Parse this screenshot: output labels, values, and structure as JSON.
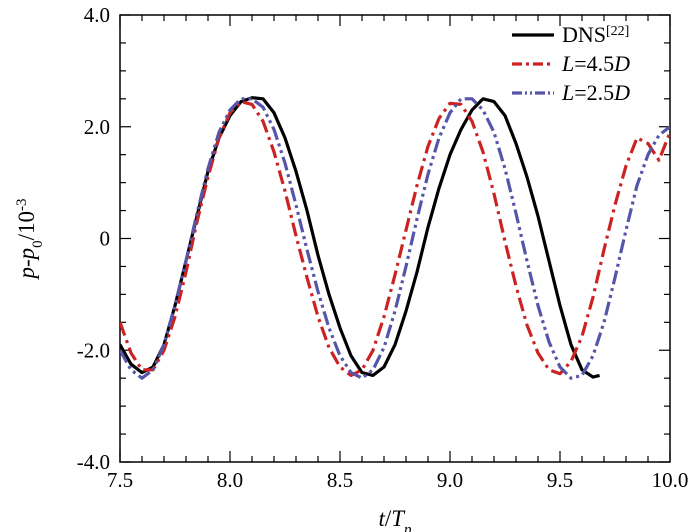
{
  "chart_data": {
    "type": "line",
    "xlabel": {
      "main": "t",
      "sep": "/",
      "sym": "T",
      "sub": "p"
    },
    "ylabel": {
      "a": "p",
      "dash": "-",
      "b": "p",
      "sub": "0",
      "sep": "/10",
      "sup": "-3"
    },
    "xlim": [
      7.5,
      10.0
    ],
    "ylim": [
      -4.0,
      4.0
    ],
    "xticks": [
      7.5,
      8.0,
      8.5,
      9.0,
      9.5,
      10.0
    ],
    "xtick_labels": [
      "7.5",
      "8.0",
      "8.5",
      "9.0",
      "9.5",
      "10.0"
    ],
    "yticks": [
      -4.0,
      -2.0,
      0,
      2.0,
      4.0
    ],
    "ytick_labels": [
      "-4.0",
      "-2.0",
      "0",
      "2.0",
      "4.0"
    ],
    "grid": false,
    "legend_position": "top-right",
    "series": [
      {
        "name": "DNS",
        "name_sup": "[22]",
        "name_suffix": "",
        "color": "#000000",
        "style": "solid",
        "x": [
          7.5,
          7.55,
          7.6,
          7.65,
          7.7,
          7.75,
          7.8,
          7.85,
          7.9,
          7.95,
          8.0,
          8.05,
          8.1,
          8.15,
          8.2,
          8.25,
          8.3,
          8.35,
          8.4,
          8.45,
          8.5,
          8.55,
          8.6,
          8.65,
          8.7,
          8.75,
          8.8,
          8.85,
          8.9,
          8.95,
          9.0,
          9.05,
          9.1,
          9.15,
          9.2,
          9.25,
          9.3,
          9.35,
          9.4,
          9.45,
          9.5,
          9.55,
          9.6,
          9.65,
          9.68
        ],
        "y": [
          -1.9,
          -2.25,
          -2.4,
          -2.3,
          -1.9,
          -1.2,
          -0.4,
          0.4,
          1.2,
          1.8,
          2.2,
          2.45,
          2.52,
          2.5,
          2.25,
          1.8,
          1.2,
          0.5,
          -0.3,
          -1.0,
          -1.6,
          -2.1,
          -2.4,
          -2.45,
          -2.3,
          -1.9,
          -1.3,
          -0.6,
          0.2,
          0.9,
          1.5,
          1.95,
          2.3,
          2.5,
          2.45,
          2.2,
          1.7,
          1.1,
          0.4,
          -0.4,
          -1.2,
          -1.9,
          -2.35,
          -2.48,
          -2.45
        ]
      },
      {
        "name": "L",
        "name_sup": "",
        "name_suffix": "=4.5D",
        "color": "#cc2222",
        "style": "dashdot",
        "x": [
          7.5,
          7.55,
          7.6,
          7.65,
          7.7,
          7.75,
          7.8,
          7.85,
          7.9,
          7.95,
          8.0,
          8.05,
          8.1,
          8.15,
          8.2,
          8.25,
          8.3,
          8.35,
          8.4,
          8.45,
          8.5,
          8.55,
          8.6,
          8.65,
          8.7,
          8.75,
          8.8,
          8.85,
          8.9,
          8.95,
          9.0,
          9.05,
          9.1,
          9.15,
          9.2,
          9.25,
          9.3,
          9.35,
          9.4,
          9.45,
          9.5,
          9.55,
          9.6,
          9.65,
          9.7,
          9.75,
          9.8,
          9.85,
          9.9,
          9.95,
          10.0
        ],
        "y": [
          -1.5,
          -2.05,
          -2.35,
          -2.35,
          -2.0,
          -1.4,
          -0.6,
          0.3,
          1.1,
          1.8,
          2.25,
          2.45,
          2.4,
          2.1,
          1.55,
          0.85,
          0.05,
          -0.7,
          -1.4,
          -1.95,
          -2.3,
          -2.45,
          -2.35,
          -2.0,
          -1.4,
          -0.65,
          0.15,
          0.95,
          1.65,
          2.15,
          2.42,
          2.4,
          2.1,
          1.55,
          0.8,
          -0.05,
          -0.85,
          -1.55,
          -2.05,
          -2.35,
          -2.42,
          -2.2,
          -1.75,
          -1.05,
          -0.2,
          0.6,
          1.3,
          1.8,
          1.7,
          1.4,
          1.9
        ]
      },
      {
        "name": "L",
        "name_sup": "",
        "name_suffix": "=2.5D",
        "color": "#5555aa",
        "style": "dashdotdot",
        "x": [
          7.5,
          7.55,
          7.6,
          7.65,
          7.7,
          7.75,
          7.8,
          7.85,
          7.9,
          7.95,
          8.0,
          8.05,
          8.1,
          8.15,
          8.2,
          8.25,
          8.3,
          8.35,
          8.4,
          8.45,
          8.5,
          8.55,
          8.6,
          8.65,
          8.7,
          8.75,
          8.8,
          8.85,
          8.9,
          8.95,
          9.0,
          9.05,
          9.1,
          9.15,
          9.2,
          9.25,
          9.3,
          9.35,
          9.4,
          9.45,
          9.5,
          9.55,
          9.6,
          9.65,
          9.7,
          9.75,
          9.8,
          9.85,
          9.9,
          9.95,
          10.0
        ],
        "y": [
          -2.0,
          -2.35,
          -2.5,
          -2.35,
          -1.9,
          -1.2,
          -0.4,
          0.45,
          1.25,
          1.9,
          2.3,
          2.5,
          2.5,
          2.35,
          1.95,
          1.35,
          0.6,
          -0.2,
          -0.95,
          -1.6,
          -2.1,
          -2.4,
          -2.5,
          -2.35,
          -1.95,
          -1.3,
          -0.5,
          0.35,
          1.15,
          1.8,
          2.25,
          2.5,
          2.5,
          2.3,
          1.9,
          1.25,
          0.45,
          -0.4,
          -1.2,
          -1.85,
          -2.3,
          -2.5,
          -2.45,
          -2.1,
          -1.5,
          -0.7,
          0.15,
          0.95,
          1.5,
          1.85,
          2.0
        ]
      }
    ]
  }
}
